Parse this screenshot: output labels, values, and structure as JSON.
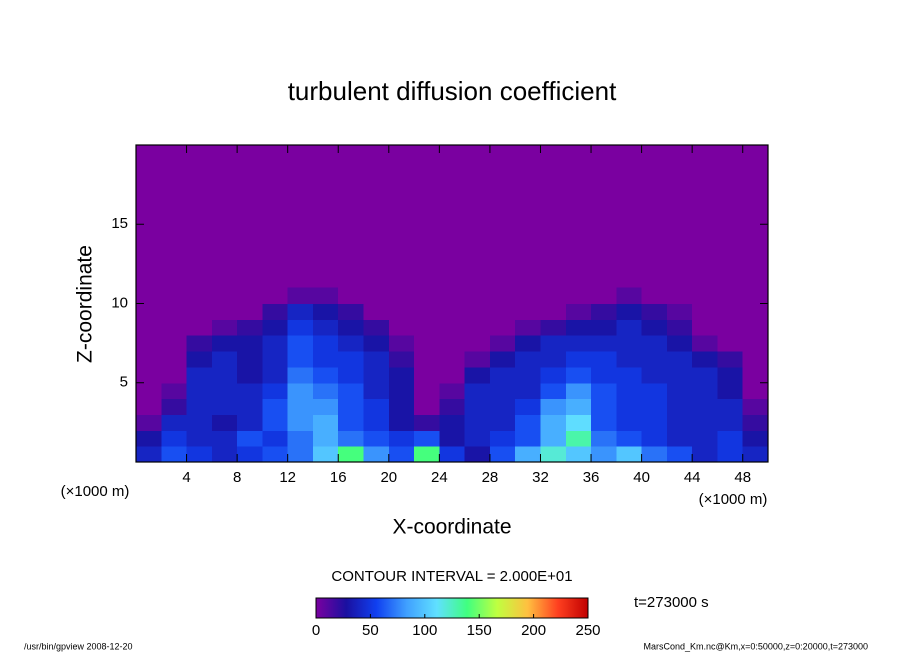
{
  "chart_data": {
    "type": "heatmap",
    "title": "turbulent diffusion coefficient",
    "x_label": "X-coordinate",
    "y_label": "Z-coordinate",
    "x_units": "(×1000 m)",
    "y_units": "(×1000 m)",
    "contour_note": "CONTOUR INTERVAL = 2.000E+01",
    "time_note": "t=273000 s",
    "footer_left": "/usr/bin/gpview  2008-12-20",
    "footer_right": "MarsCond_Km.nc@Km,x=0:50000,z=0:20000,t=273000",
    "xlim": [
      0,
      50
    ],
    "ylim": [
      0,
      20
    ],
    "xticks": [
      4,
      8,
      12,
      16,
      20,
      24,
      28,
      32,
      36,
      40,
      44,
      48
    ],
    "yticks": [
      5,
      10,
      15
    ],
    "x": [
      1,
      3,
      5,
      7,
      9,
      11,
      13,
      15,
      17,
      19,
      21,
      23,
      25,
      27,
      29,
      31,
      33,
      35,
      37,
      39,
      41,
      43,
      45,
      47,
      49
    ],
    "z": [
      0.5,
      1.5,
      2.5,
      3.5,
      4.5,
      5.5,
      6.5,
      7.5,
      8.5,
      9.5,
      10.5
    ],
    "values": [
      [
        40,
        60,
        50,
        40,
        50,
        60,
        70,
        100,
        140,
        80,
        60,
        140,
        50,
        30,
        60,
        90,
        120,
        100,
        80,
        100,
        70,
        60,
        40,
        50,
        40
      ],
      [
        30,
        50,
        40,
        40,
        60,
        50,
        70,
        90,
        70,
        60,
        50,
        60,
        30,
        40,
        50,
        60,
        90,
        130,
        70,
        60,
        50,
        40,
        40,
        50,
        30
      ],
      [
        10,
        40,
        40,
        30,
        40,
        60,
        80,
        90,
        60,
        50,
        30,
        20,
        30,
        40,
        40,
        60,
        90,
        110,
        60,
        50,
        50,
        40,
        40,
        40,
        20
      ],
      [
        0,
        20,
        40,
        40,
        40,
        60,
        80,
        80,
        60,
        50,
        30,
        0,
        20,
        40,
        40,
        50,
        80,
        90,
        60,
        50,
        50,
        40,
        40,
        40,
        10
      ],
      [
        0,
        10,
        40,
        40,
        40,
        50,
        80,
        70,
        60,
        40,
        30,
        0,
        10,
        40,
        40,
        40,
        60,
        80,
        60,
        50,
        50,
        40,
        40,
        30,
        0
      ],
      [
        0,
        0,
        40,
        40,
        30,
        40,
        70,
        60,
        50,
        40,
        30,
        0,
        0,
        30,
        40,
        40,
        50,
        60,
        50,
        50,
        40,
        40,
        40,
        30,
        0
      ],
      [
        0,
        0,
        30,
        40,
        30,
        40,
        60,
        50,
        50,
        40,
        20,
        0,
        0,
        10,
        30,
        40,
        40,
        50,
        50,
        40,
        40,
        40,
        30,
        20,
        0
      ],
      [
        0,
        0,
        20,
        30,
        30,
        40,
        60,
        50,
        40,
        30,
        10,
        0,
        0,
        0,
        10,
        30,
        40,
        40,
        40,
        40,
        40,
        30,
        10,
        0,
        0
      ],
      [
        0,
        0,
        0,
        10,
        20,
        30,
        50,
        40,
        30,
        20,
        0,
        0,
        0,
        0,
        0,
        10,
        20,
        30,
        30,
        40,
        30,
        20,
        0,
        0,
        0
      ],
      [
        0,
        0,
        0,
        0,
        0,
        20,
        40,
        30,
        20,
        0,
        0,
        0,
        0,
        0,
        0,
        0,
        0,
        10,
        20,
        30,
        20,
        10,
        0,
        0,
        0
      ],
      [
        0,
        0,
        0,
        0,
        0,
        0,
        10,
        10,
        0,
        0,
        0,
        0,
        0,
        0,
        0,
        0,
        0,
        0,
        0,
        10,
        0,
        0,
        0,
        0,
        0
      ]
    ],
    "colormap": [
      "#7a00a0",
      "#1a10a0",
      "#1040f0",
      "#40a0ff",
      "#60e0ff",
      "#40ff80",
      "#c0ff40",
      "#ffc040",
      "#ff4020",
      "#c00000"
    ],
    "colorbar_lim": [
      0,
      250
    ],
    "colorbar_ticks": [
      0,
      50,
      100,
      150,
      200,
      250
    ]
  }
}
